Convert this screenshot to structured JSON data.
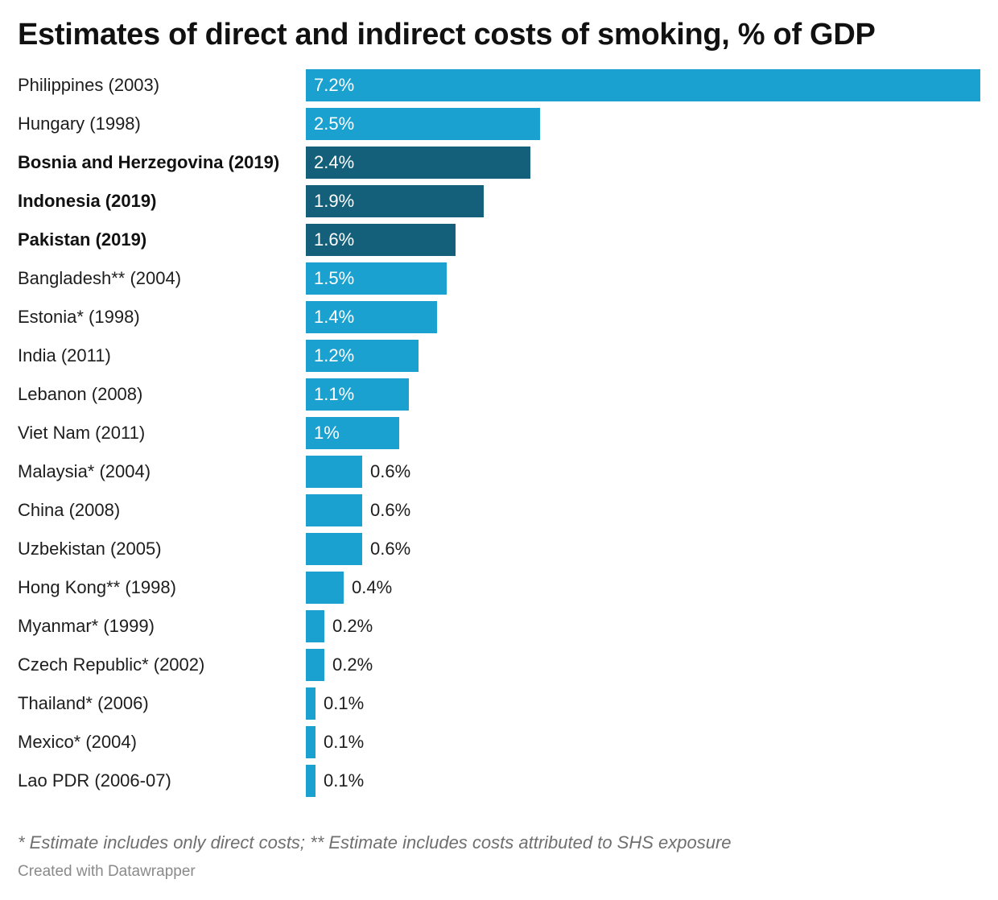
{
  "chart_data": {
    "type": "bar",
    "orientation": "horizontal",
    "title": "Estimates of direct and indirect costs of smoking, % of GDP",
    "categories": [
      "Philippines (2003)",
      "Hungary (1998)",
      "Bosnia and Herzegovina (2019)",
      "Indonesia (2019)",
      "Pakistan (2019)",
      "Bangladesh** (2004)",
      "Estonia* (1998)",
      "India (2011)",
      "Lebanon (2008)",
      "Viet Nam (2011)",
      "Malaysia* (2004)",
      "China (2008)",
      "Uzbekistan (2005)",
      "Hong Kong** (1998)",
      "Myanmar* (1999)",
      "Czech Republic* (2002)",
      "Thailand* (2006)",
      "Mexico* (2004)",
      "Lao PDR (2006-07)"
    ],
    "values": [
      7.2,
      2.5,
      2.4,
      1.9,
      1.6,
      1.5,
      1.4,
      1.2,
      1.1,
      1.0,
      0.6,
      0.6,
      0.6,
      0.4,
      0.2,
      0.2,
      0.1,
      0.1,
      0.1
    ],
    "value_labels": [
      "7.2%",
      "2.5%",
      "2.4%",
      "1.9%",
      "1.6%",
      "1.5%",
      "1.4%",
      "1.2%",
      "1.1%",
      "1%",
      "0.6%",
      "0.6%",
      "0.6%",
      "0.4%",
      "0.2%",
      "0.2%",
      "0.1%",
      "0.1%",
      "0.1%"
    ],
    "highlighted": [
      false,
      false,
      true,
      true,
      true,
      false,
      false,
      false,
      false,
      false,
      false,
      false,
      false,
      false,
      false,
      false,
      false,
      false,
      false
    ],
    "xlim": [
      0,
      7.2
    ],
    "grid": false,
    "legend": "none",
    "colors": {
      "default": "#1aa1cf",
      "highlight": "#14607a"
    },
    "note": "* Estimate includes only direct costs; ** Estimate includes costs attributed to SHS exposure",
    "credit": "Created with Datawrapper"
  }
}
